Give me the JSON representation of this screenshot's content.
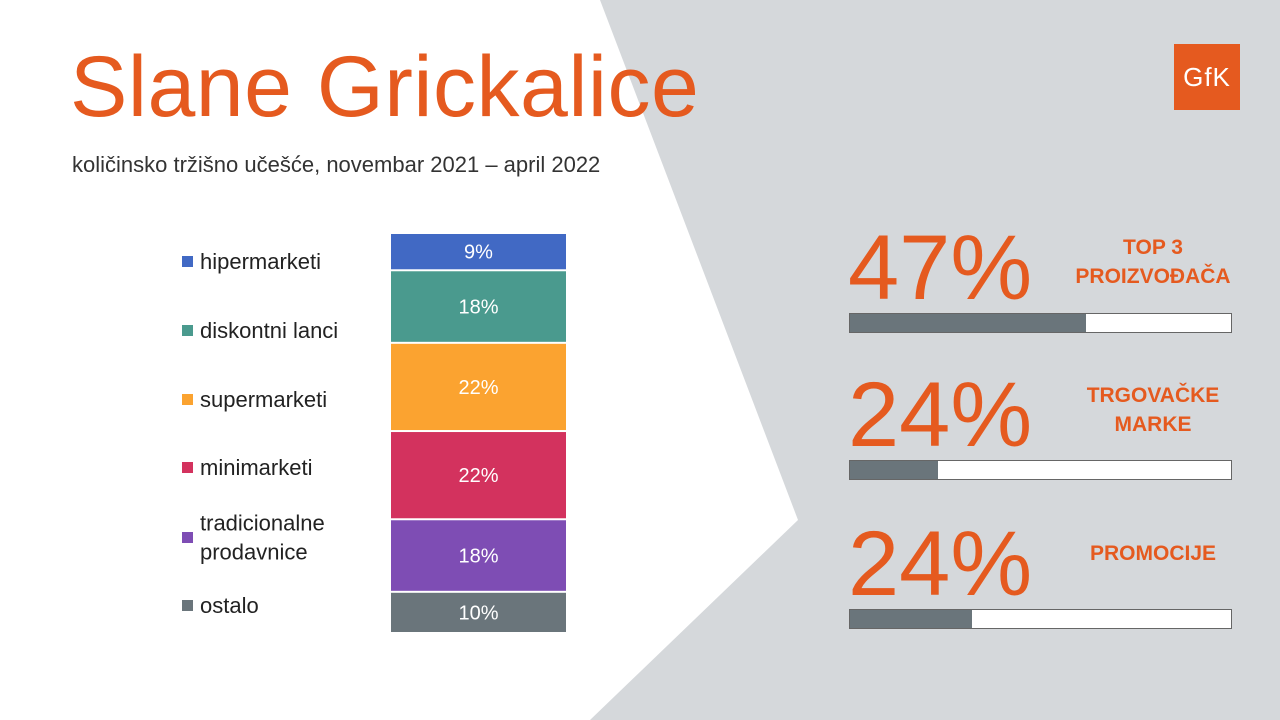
{
  "title": "Slane Grickalice",
  "subtitle": "količinsko tržišno učešće, novembar 2021 – april 2022",
  "logo": "GfK",
  "chart_data": {
    "type": "bar",
    "stacked": true,
    "orientation": "vertical",
    "unit": "%",
    "categories": [
      "hipermarketi",
      "diskontni lanci",
      "supermarketi",
      "minimarketi",
      "tradicionalne prodavnice",
      "ostalo"
    ],
    "values": [
      9,
      18,
      22,
      22,
      18,
      10
    ],
    "labels": [
      "9%",
      "18%",
      "22%",
      "22%",
      "18%",
      "10%"
    ],
    "colors": [
      "#4169C4",
      "#4A9A8E",
      "#FBA330",
      "#D3325E",
      "#7E4DB4",
      "#6A757B"
    ],
    "legend_placement": "left",
    "grid": false
  },
  "kpis": [
    {
      "value": "47%",
      "label_lines": [
        "TOP 3",
        "PROIZVOĐAČA"
      ],
      "fraction": 0.62
    },
    {
      "value": "24%",
      "label_lines": [
        "TRGOVAČKE",
        "MARKE"
      ],
      "fraction": 0.23
    },
    {
      "value": "24%",
      "label_lines": [
        "PROMOCIJE"
      ],
      "fraction": 0.32
    }
  ],
  "colors": {
    "accent": "#E55A1F",
    "panel": "#D5D8DB",
    "bar_fill": "#6A757B"
  }
}
